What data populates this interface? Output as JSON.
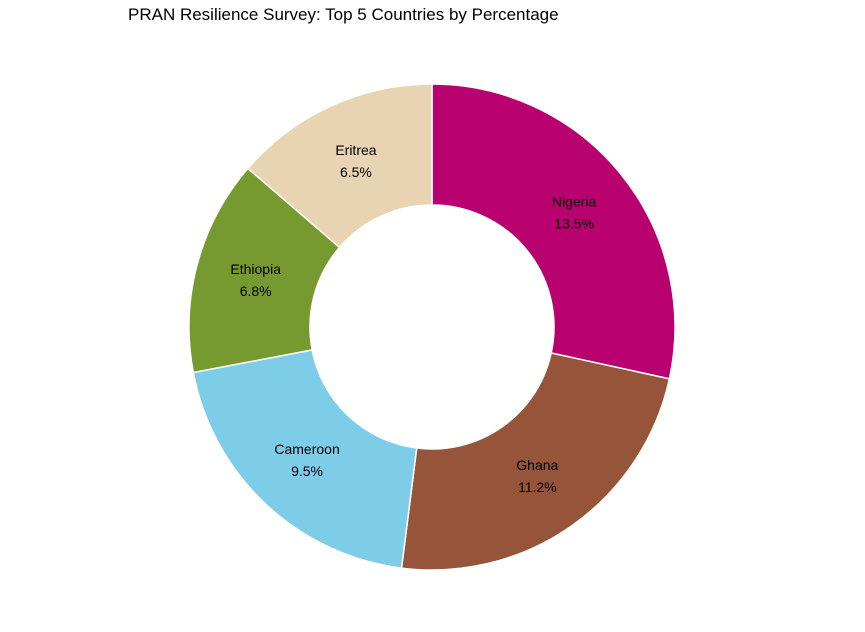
{
  "chart_data": {
    "type": "pie",
    "style": "donut",
    "title": "PRAN Resilience Survey: Top 5 Countries by Percentage",
    "start_angle_deg": 0,
    "direction": "clockwise",
    "slices": [
      {
        "label": "Nigeria",
        "value": 13.5,
        "display": "13.5%",
        "color": "#B8006E"
      },
      {
        "label": "Ghana",
        "value": 11.2,
        "display": "11.2%",
        "color": "#96553A"
      },
      {
        "label": "Cameroon",
        "value": 9.5,
        "display": "9.5%",
        "color": "#7ECDE8"
      },
      {
        "label": "Ethiopia",
        "value": 6.8,
        "display": "6.8%",
        "color": "#779A30"
      },
      {
        "label": "Eritrea",
        "value": 6.5,
        "display": "6.5%",
        "color": "#E8D3B3"
      }
    ],
    "legend": "none",
    "slice_border_color": "#FFFFFF"
  }
}
